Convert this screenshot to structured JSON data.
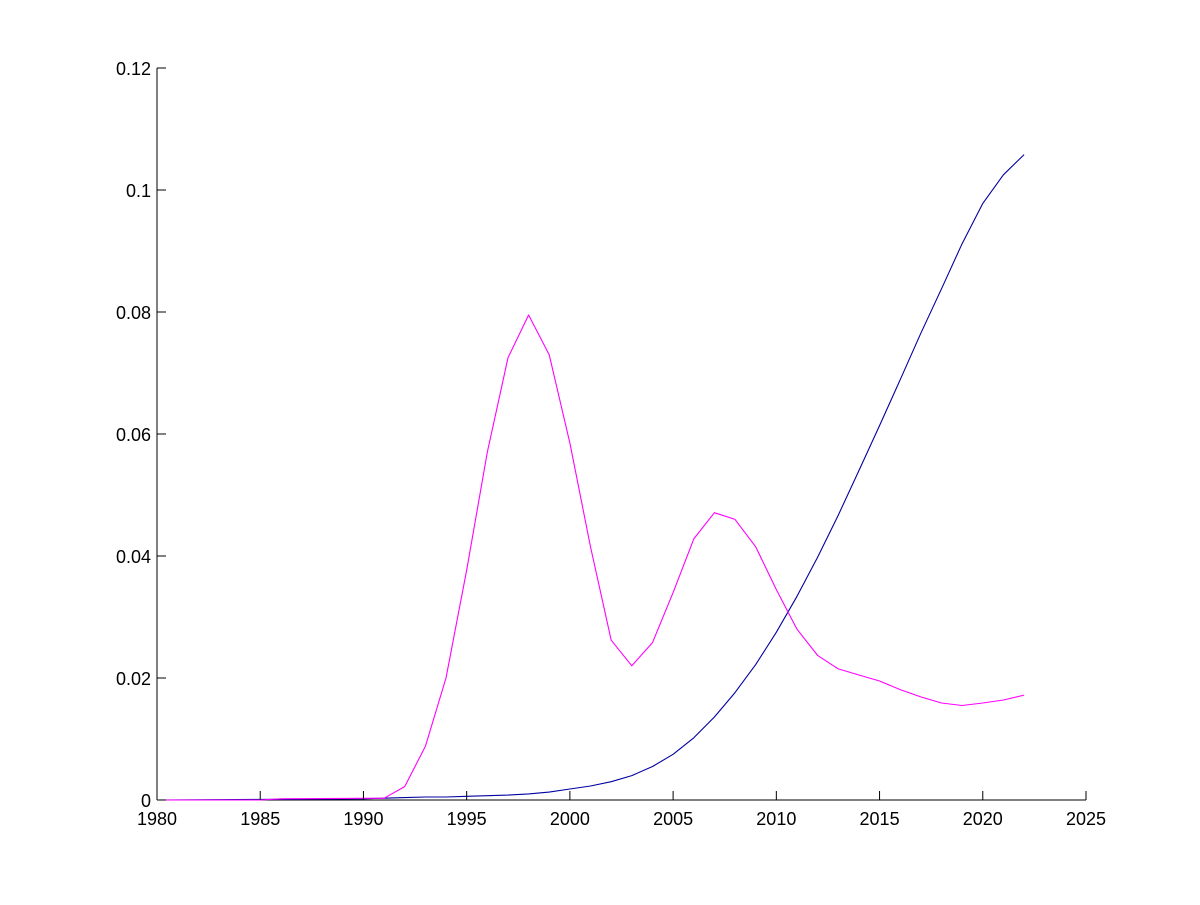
{
  "chart_data": {
    "type": "line",
    "title": "",
    "xlabel": "",
    "ylabel": "",
    "xlim": [
      1980,
      2025
    ],
    "ylim": [
      0,
      0.12
    ],
    "grid": false,
    "x_ticks": [
      1980,
      1985,
      1990,
      1995,
      2000,
      2005,
      2010,
      2015,
      2020,
      2025
    ],
    "y_ticks": [
      0,
      0.02,
      0.04,
      0.06,
      0.08,
      0.1,
      0.12
    ],
    "x_tick_labels": [
      "1980",
      "1985",
      "1990",
      "1995",
      "2000",
      "2005",
      "2010",
      "2015",
      "2020",
      "2025"
    ],
    "y_tick_labels": [
      "0",
      "0.02",
      "0.04",
      "0.06",
      "0.08",
      "0.1",
      "0.12"
    ],
    "series": [
      {
        "color": "#0000a0",
        "x": [
          1980,
          1985,
          1990,
          1991,
          1992,
          1993,
          1994,
          1995,
          1996,
          1997,
          1998,
          1999,
          2000,
          2001,
          2002,
          2003,
          2004,
          2005,
          2006,
          2007,
          2008,
          2009,
          2010,
          2011,
          2012,
          2013,
          2014,
          2015,
          2016,
          2017,
          2018,
          2019,
          2020,
          2021,
          2022
        ],
        "y": [
          0,
          0.0001,
          0.0002,
          0.0003,
          0.0004,
          0.0005,
          0.0005,
          0.0006,
          0.0007,
          0.0008,
          0.001,
          0.0013,
          0.0018,
          0.0023,
          0.003,
          0.004,
          0.0055,
          0.0075,
          0.0102,
          0.0136,
          0.0176,
          0.0222,
          0.0275,
          0.0334,
          0.0398,
          0.0467,
          0.054,
          0.0614,
          0.0689,
          0.0765,
          0.0838,
          0.0912,
          0.0978,
          0.1025,
          0.1058
        ]
      },
      {
        "color": "#ff00ff",
        "x": [
          1980,
          1985,
          1986,
          1991,
          1992,
          1993,
          1994,
          1995,
          1996,
          1997,
          1998,
          1999,
          2000,
          2001,
          2002,
          2003,
          2004,
          2005,
          2006,
          2007,
          2008,
          2009,
          2010,
          2011,
          2012,
          2013,
          2014,
          2015,
          2016,
          2017,
          2018,
          2019,
          2020,
          2021,
          2022
        ],
        "y": [
          0,
          0,
          0.0002,
          0.0003,
          0.0022,
          0.0088,
          0.02,
          0.0377,
          0.057,
          0.0725,
          0.0795,
          0.073,
          0.0585,
          0.0415,
          0.0262,
          0.022,
          0.0258,
          0.034,
          0.0428,
          0.0471,
          0.046,
          0.0415,
          0.0345,
          0.028,
          0.0237,
          0.0215,
          0.0205,
          0.0195,
          0.0181,
          0.0169,
          0.0159,
          0.0155,
          0.0159,
          0.0164,
          0.0172
        ]
      }
    ]
  }
}
